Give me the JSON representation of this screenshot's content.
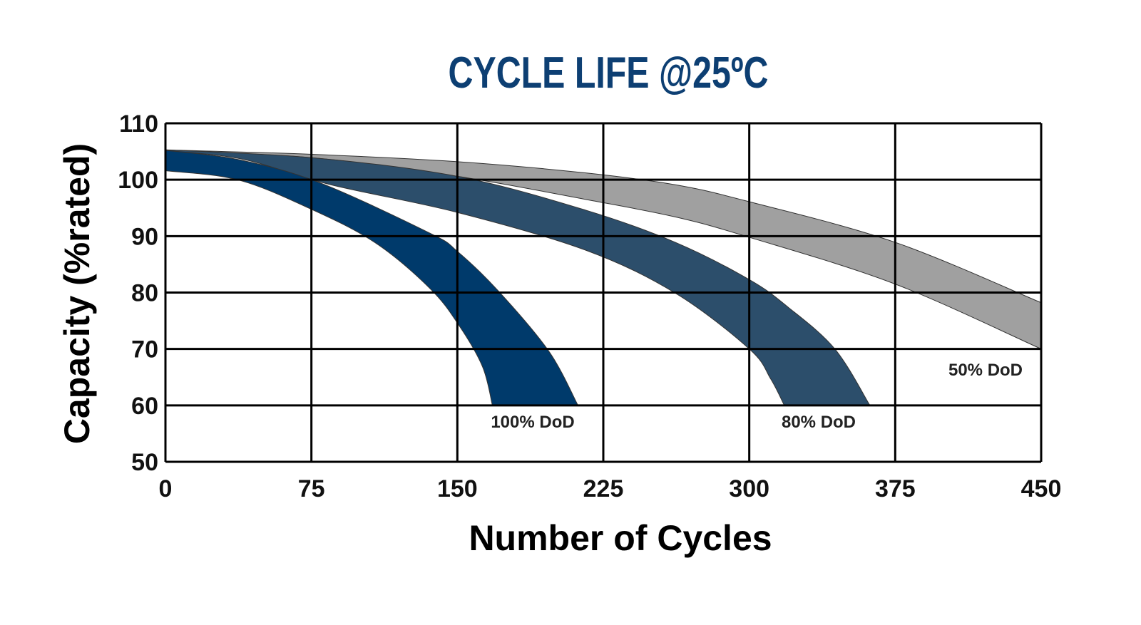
{
  "chart_data": {
    "type": "area",
    "title": "CYCLE LIFE @25ºC",
    "xlabel": "Number of Cycles",
    "ylabel": "Capacity (%rated)",
    "xlim": [
      0,
      450
    ],
    "ylim": [
      50,
      110
    ],
    "x_ticks": [
      "0",
      "75",
      "150",
      "225",
      "300",
      "375",
      "450"
    ],
    "y_ticks": [
      "110",
      "100",
      "90",
      "80",
      "70",
      "60",
      "50"
    ],
    "grid": true,
    "series": [
      {
        "name": "50% DoD",
        "color": "#a0a0a0",
        "upper": [
          [
            0,
            105.3
          ],
          [
            75,
            104.5
          ],
          [
            150,
            103.2
          ],
          [
            216,
            101.2
          ],
          [
            262,
            99.1
          ],
          [
            300,
            96.1
          ],
          [
            375,
            88.9
          ],
          [
            450,
            78.2
          ]
        ],
        "lower": [
          [
            0,
            105.2
          ],
          [
            75,
            103.9
          ],
          [
            150,
            100.6
          ],
          [
            216,
            96.5
          ],
          [
            262,
            93.4
          ],
          [
            300,
            89.8
          ],
          [
            375,
            81.5
          ],
          [
            450,
            70
          ]
        ]
      },
      {
        "name": "80% DoD",
        "color": "#2c4e6b",
        "upper": [
          [
            0,
            105.3
          ],
          [
            75,
            103.9
          ],
          [
            150,
            100.6
          ],
          [
            216,
            94.6
          ],
          [
            262,
            88.9
          ],
          [
            300,
            82.3
          ],
          [
            320,
            77.4
          ],
          [
            344,
            70
          ],
          [
            362,
            60
          ]
        ],
        "lower": [
          [
            0,
            105.2
          ],
          [
            40,
            103.6
          ],
          [
            85,
            99.1
          ],
          [
            150,
            94.2
          ],
          [
            216,
            87.5
          ],
          [
            262,
            79.9
          ],
          [
            300,
            70
          ],
          [
            311,
            64.7
          ],
          [
            318,
            60
          ]
        ]
      },
      {
        "name": "100% DoD",
        "color": "#003a6b",
        "upper": [
          [
            0,
            105.2
          ],
          [
            37,
            103.6
          ],
          [
            79,
            99.5
          ],
          [
            136,
            90.5
          ],
          [
            150,
            87.3
          ],
          [
            171,
            80.3
          ],
          [
            197,
            69.6
          ],
          [
            212,
            60
          ]
        ],
        "lower": [
          [
            0,
            101.6
          ],
          [
            37,
            100
          ],
          [
            73.5,
            95
          ],
          [
            107.5,
            88.9
          ],
          [
            136,
            80.7
          ],
          [
            151,
            74.1
          ],
          [
            163,
            66.8
          ],
          [
            168,
            60
          ]
        ]
      }
    ]
  }
}
